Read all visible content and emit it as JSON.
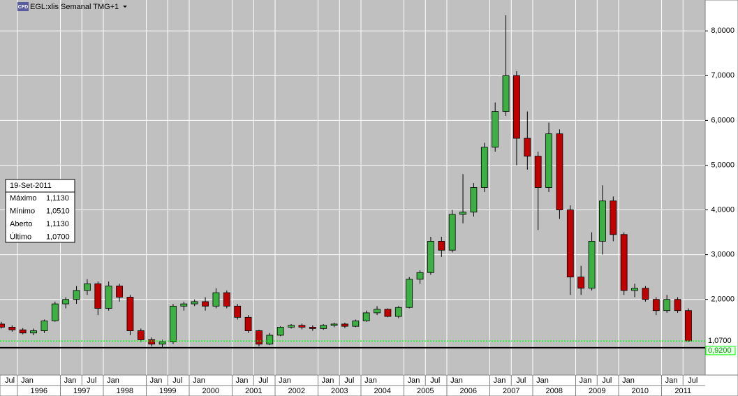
{
  "chart_data": {
    "type": "candlestick",
    "title": "EGL:xlis Semanal TMG+1",
    "logo": "CFD",
    "x": [
      "1995-07",
      "1995-10",
      "1996-01",
      "1996-04",
      "1996-07",
      "1996-10",
      "1997-01",
      "1997-04",
      "1997-07",
      "1997-10",
      "1998-01",
      "1998-04",
      "1998-07",
      "1998-10",
      "1999-01",
      "1999-04",
      "1999-07",
      "1999-10",
      "2000-01",
      "2000-04",
      "2000-07",
      "2000-10",
      "2001-01",
      "2001-04",
      "2001-07",
      "2001-10",
      "2002-01",
      "2002-04",
      "2002-07",
      "2002-10",
      "2003-01",
      "2003-04",
      "2003-07",
      "2003-10",
      "2004-01",
      "2004-04",
      "2004-07",
      "2004-10",
      "2005-01",
      "2005-04",
      "2005-07",
      "2005-10",
      "2006-01",
      "2006-04",
      "2006-07",
      "2006-10",
      "2007-01",
      "2007-04",
      "2007-07",
      "2007-10",
      "2008-01",
      "2008-04",
      "2008-07",
      "2008-10",
      "2009-01",
      "2009-04",
      "2009-07",
      "2009-10",
      "2010-01",
      "2010-04",
      "2010-07",
      "2010-10",
      "2011-01",
      "2011-04",
      "2011-07"
    ],
    "open": [
      1.45,
      1.38,
      1.32,
      1.25,
      1.3,
      1.52,
      1.9,
      2.0,
      2.2,
      2.35,
      1.8,
      2.3,
      2.05,
      1.3,
      1.1,
      1.0,
      1.05,
      1.85,
      1.9,
      1.95,
      1.85,
      2.15,
      1.85,
      1.6,
      1.3,
      1.0,
      1.2,
      1.38,
      1.42,
      1.38,
      1.35,
      1.42,
      1.45,
      1.4,
      1.52,
      1.7,
      1.78,
      1.62,
      1.82,
      2.45,
      2.6,
      3.3,
      3.1,
      3.9,
      3.95,
      4.5,
      5.4,
      6.2,
      7.0,
      5.6,
      5.2,
      4.5,
      5.7,
      4.0,
      2.5,
      2.25,
      3.3,
      4.2,
      3.45,
      2.2,
      2.25,
      2.0,
      1.75,
      2.0,
      1.75
    ],
    "high": [
      1.5,
      1.42,
      1.36,
      1.35,
      1.55,
      1.95,
      2.05,
      2.3,
      2.45,
      2.4,
      2.4,
      2.35,
      2.1,
      1.35,
      1.15,
      1.1,
      1.9,
      1.95,
      2.0,
      2.05,
      2.25,
      2.2,
      1.9,
      1.65,
      1.32,
      1.25,
      1.4,
      1.45,
      1.46,
      1.42,
      1.45,
      1.48,
      1.48,
      1.55,
      1.75,
      1.85,
      1.8,
      1.85,
      2.5,
      2.65,
      3.4,
      3.4,
      4.0,
      4.8,
      4.6,
      5.5,
      6.4,
      8.35,
      7.1,
      6.2,
      5.3,
      5.95,
      5.8,
      4.1,
      2.75,
      3.5,
      4.55,
      4.3,
      3.5,
      2.35,
      2.3,
      2.05,
      2.1,
      2.05,
      1.8
    ],
    "low": [
      1.35,
      1.28,
      1.22,
      1.2,
      1.25,
      1.5,
      1.8,
      1.9,
      2.1,
      1.65,
      1.75,
      1.95,
      1.2,
      1.05,
      0.95,
      0.93,
      1.0,
      1.75,
      1.85,
      1.75,
      1.8,
      1.8,
      1.55,
      1.25,
      0.95,
      0.98,
      1.18,
      1.35,
      1.33,
      1.3,
      1.32,
      1.38,
      1.36,
      1.38,
      1.5,
      1.65,
      1.6,
      1.58,
      1.8,
      2.35,
      2.55,
      2.95,
      3.05,
      3.7,
      3.85,
      4.4,
      5.3,
      6.1,
      5.0,
      4.9,
      3.55,
      4.4,
      3.8,
      2.1,
      2.1,
      2.2,
      3.0,
      3.3,
      2.1,
      2.05,
      1.95,
      1.65,
      1.7,
      1.7,
      1.05
    ],
    "close": [
      1.38,
      1.32,
      1.25,
      1.3,
      1.52,
      1.9,
      2.0,
      2.2,
      2.35,
      1.8,
      2.3,
      2.05,
      1.3,
      1.1,
      1.0,
      1.05,
      1.85,
      1.9,
      1.95,
      1.85,
      2.15,
      1.85,
      1.6,
      1.3,
      1.0,
      1.2,
      1.38,
      1.42,
      1.38,
      1.35,
      1.42,
      1.45,
      1.4,
      1.52,
      1.7,
      1.78,
      1.62,
      1.82,
      2.45,
      2.6,
      3.3,
      3.1,
      3.9,
      3.95,
      4.5,
      5.4,
      6.2,
      7.0,
      5.6,
      5.2,
      4.5,
      5.7,
      4.0,
      2.5,
      2.25,
      3.3,
      4.2,
      3.45,
      2.2,
      2.25,
      2.0,
      1.75,
      2.0,
      1.75,
      1.07
    ],
    "up_color": "#3cb043",
    "down_color": "#c00000",
    "ylim": [
      0.31,
      8.69
    ],
    "yticks": [
      {
        "value": 2,
        "label": "2,0000"
      },
      {
        "value": 3,
        "label": "3,0000"
      },
      {
        "value": 4,
        "label": "4,0000"
      },
      {
        "value": 5,
        "label": "5,0000"
      },
      {
        "value": 6,
        "label": "6,0000"
      },
      {
        "value": 7,
        "label": "7,0000"
      },
      {
        "value": 8,
        "label": "8,0000"
      }
    ],
    "xticks": [
      {
        "value": "1995-07",
        "label": "Jul"
      },
      {
        "value": "1996-01",
        "label": "Jan"
      },
      {
        "value": "1997-01",
        "label": "Jan"
      },
      {
        "value": "1997-07",
        "label": "Jul"
      },
      {
        "value": "1998-01",
        "label": "Jan"
      },
      {
        "value": "1999-01",
        "label": "Jan"
      },
      {
        "value": "1999-07",
        "label": "Jul"
      },
      {
        "value": "2000-01",
        "label": "Jan"
      },
      {
        "value": "2001-01",
        "label": "Jan"
      },
      {
        "value": "2001-07",
        "label": "Jul"
      },
      {
        "value": "2002-01",
        "label": "Jan"
      },
      {
        "value": "2003-01",
        "label": "Jan"
      },
      {
        "value": "2003-07",
        "label": "Jul"
      },
      {
        "value": "2004-01",
        "label": "Jan"
      },
      {
        "value": "2005-01",
        "label": "Jan"
      },
      {
        "value": "2005-07",
        "label": "Jul"
      },
      {
        "value": "2006-01",
        "label": "Jan"
      },
      {
        "value": "2007-01",
        "label": "Jan"
      },
      {
        "value": "2007-07",
        "label": "Jul"
      },
      {
        "value": "2008-01",
        "label": "Jan"
      },
      {
        "value": "2009-01",
        "label": "Jan"
      },
      {
        "value": "2009-07",
        "label": "Jul"
      },
      {
        "value": "2010-01",
        "label": "Jan"
      },
      {
        "value": "2011-01",
        "label": "Jan"
      },
      {
        "value": "2011-07",
        "label": "Jul"
      }
    ],
    "years": [
      1996,
      1997,
      1998,
      1999,
      2000,
      2001,
      2002,
      2003,
      2004,
      2005,
      2006,
      2007,
      2008,
      2009,
      2010,
      2011
    ],
    "reference_lines": [
      {
        "value": 1.07,
        "label": "1,0700",
        "color": "#00ff00"
      },
      {
        "value": 0.92,
        "label": "0,9200",
        "color": "#000000"
      }
    ],
    "grid": true,
    "info": {
      "date": "19-Set-2011",
      "rows": [
        {
          "label": "Máximo",
          "value": "1,1130"
        },
        {
          "label": "Mínimo",
          "value": "1,0510"
        },
        {
          "label": "Aberto",
          "value": "1,1130"
        },
        {
          "label": "Último",
          "value": "1,0700"
        }
      ]
    }
  }
}
